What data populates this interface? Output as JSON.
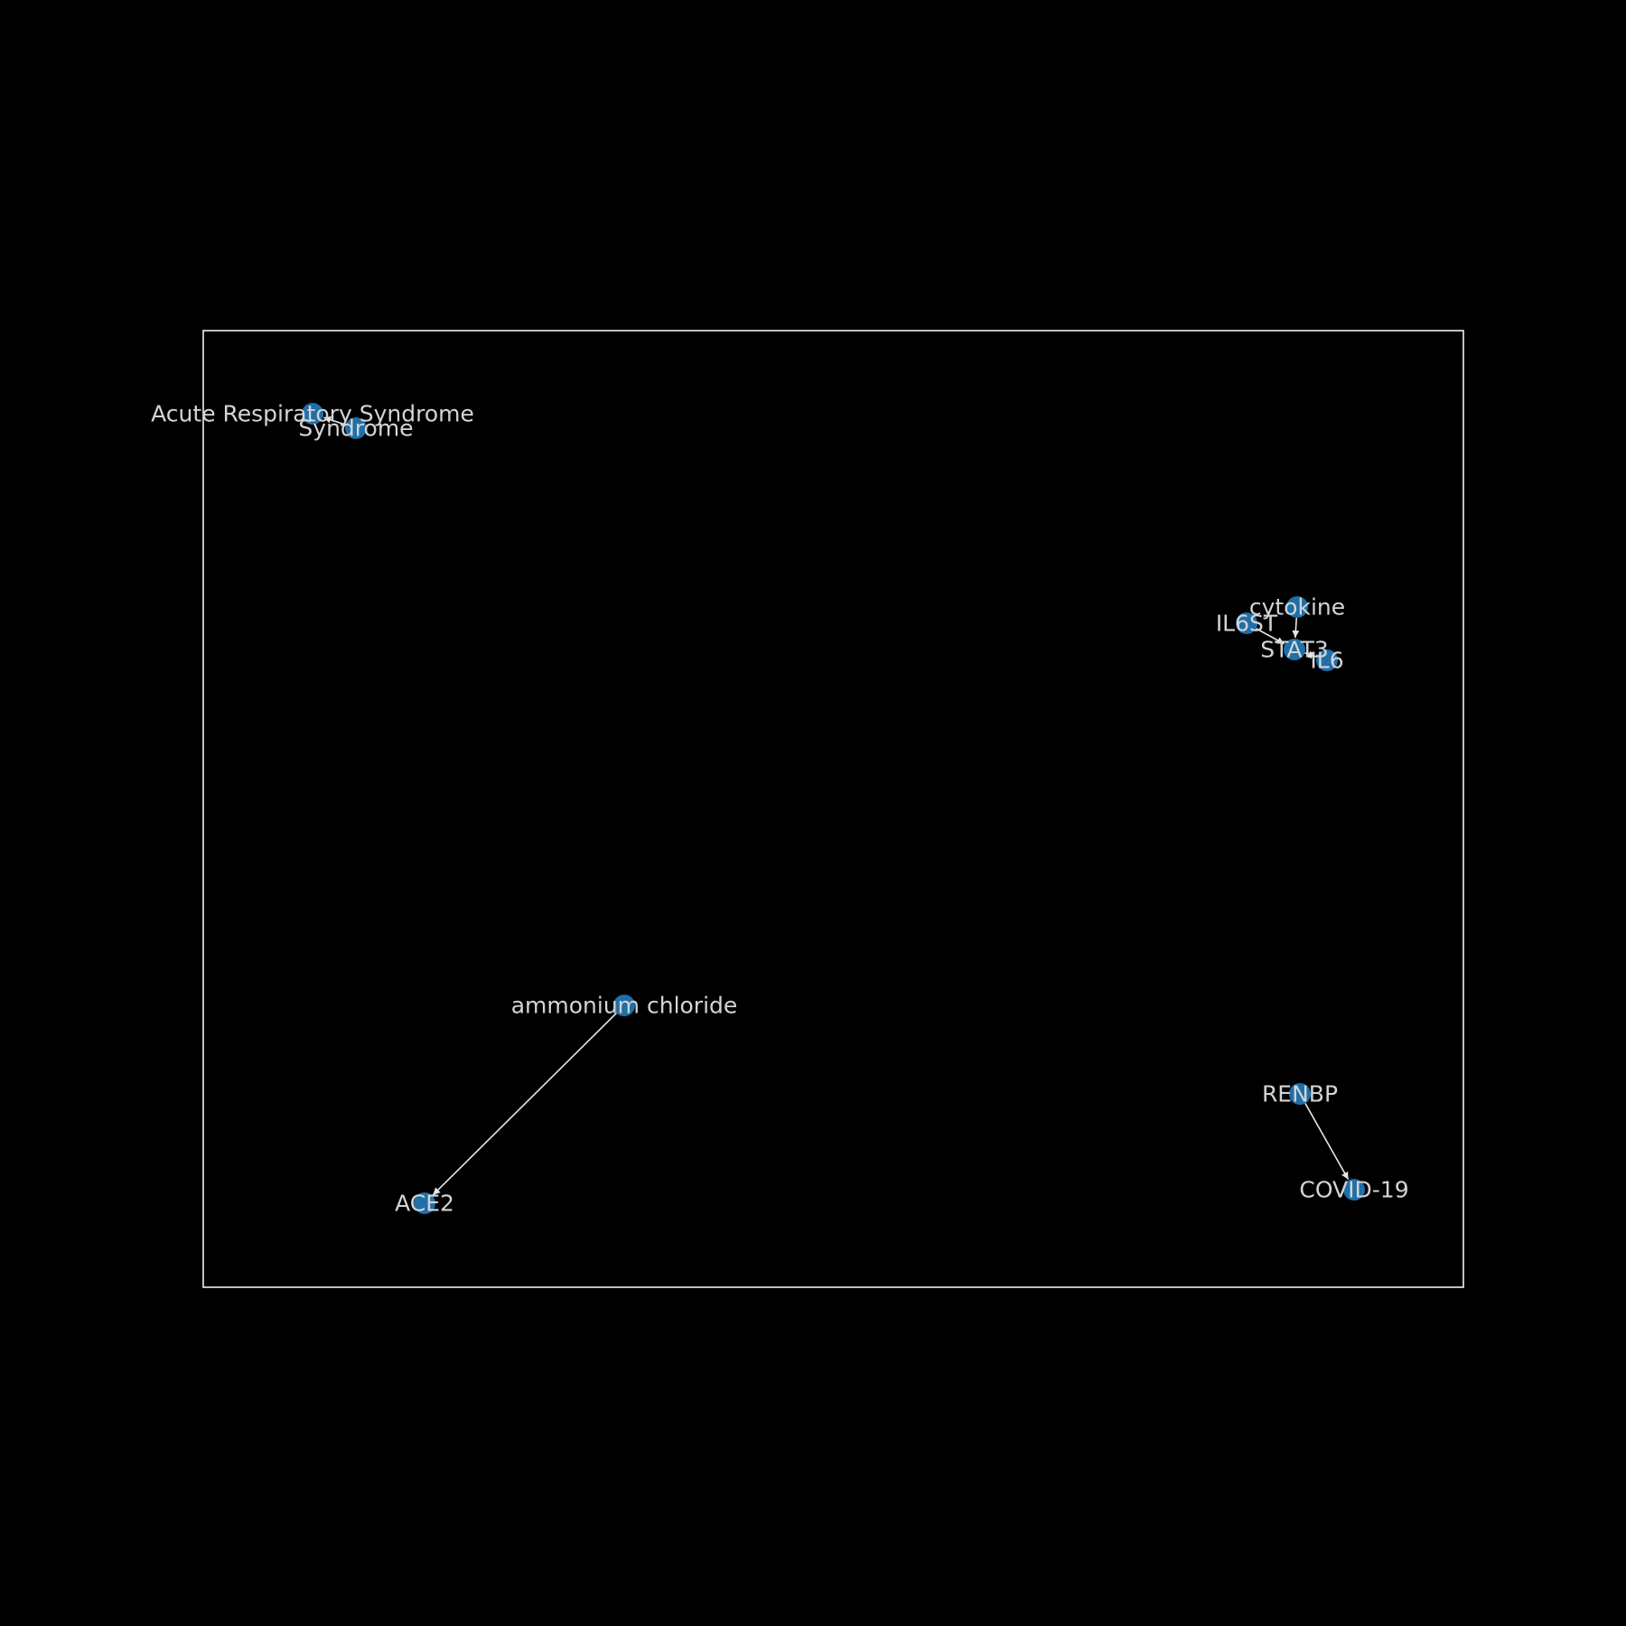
{
  "colors": {
    "background": "#000000",
    "frame": "#ffffff",
    "node_fill": "#1f6fa8",
    "edge": "#e6e6e6",
    "label": "#d4d4d4"
  },
  "nodes": [
    {
      "id": "acute",
      "label": "Acute Respiratory Syndrome"
    },
    {
      "id": "syndrome",
      "label": "Syndrome"
    },
    {
      "id": "cytokine",
      "label": "cytokine"
    },
    {
      "id": "il6st",
      "label": "IL6ST"
    },
    {
      "id": "stat3",
      "label": "STAT3"
    },
    {
      "id": "il6",
      "label": "IL6"
    },
    {
      "id": "ammonium",
      "label": "ammonium chloride"
    },
    {
      "id": "ace2",
      "label": "ACE2"
    },
    {
      "id": "renbp",
      "label": "RENBP"
    },
    {
      "id": "covid",
      "label": "COVID-19"
    }
  ],
  "edges": [
    {
      "source": "syndrome",
      "target": "acute"
    },
    {
      "source": "cytokine",
      "target": "stat3"
    },
    {
      "source": "il6st",
      "target": "stat3"
    },
    {
      "source": "il6",
      "target": "stat3"
    },
    {
      "source": "stat3",
      "target": "il6"
    },
    {
      "source": "ammonium",
      "target": "ace2"
    },
    {
      "source": "renbp",
      "target": "covid"
    }
  ]
}
